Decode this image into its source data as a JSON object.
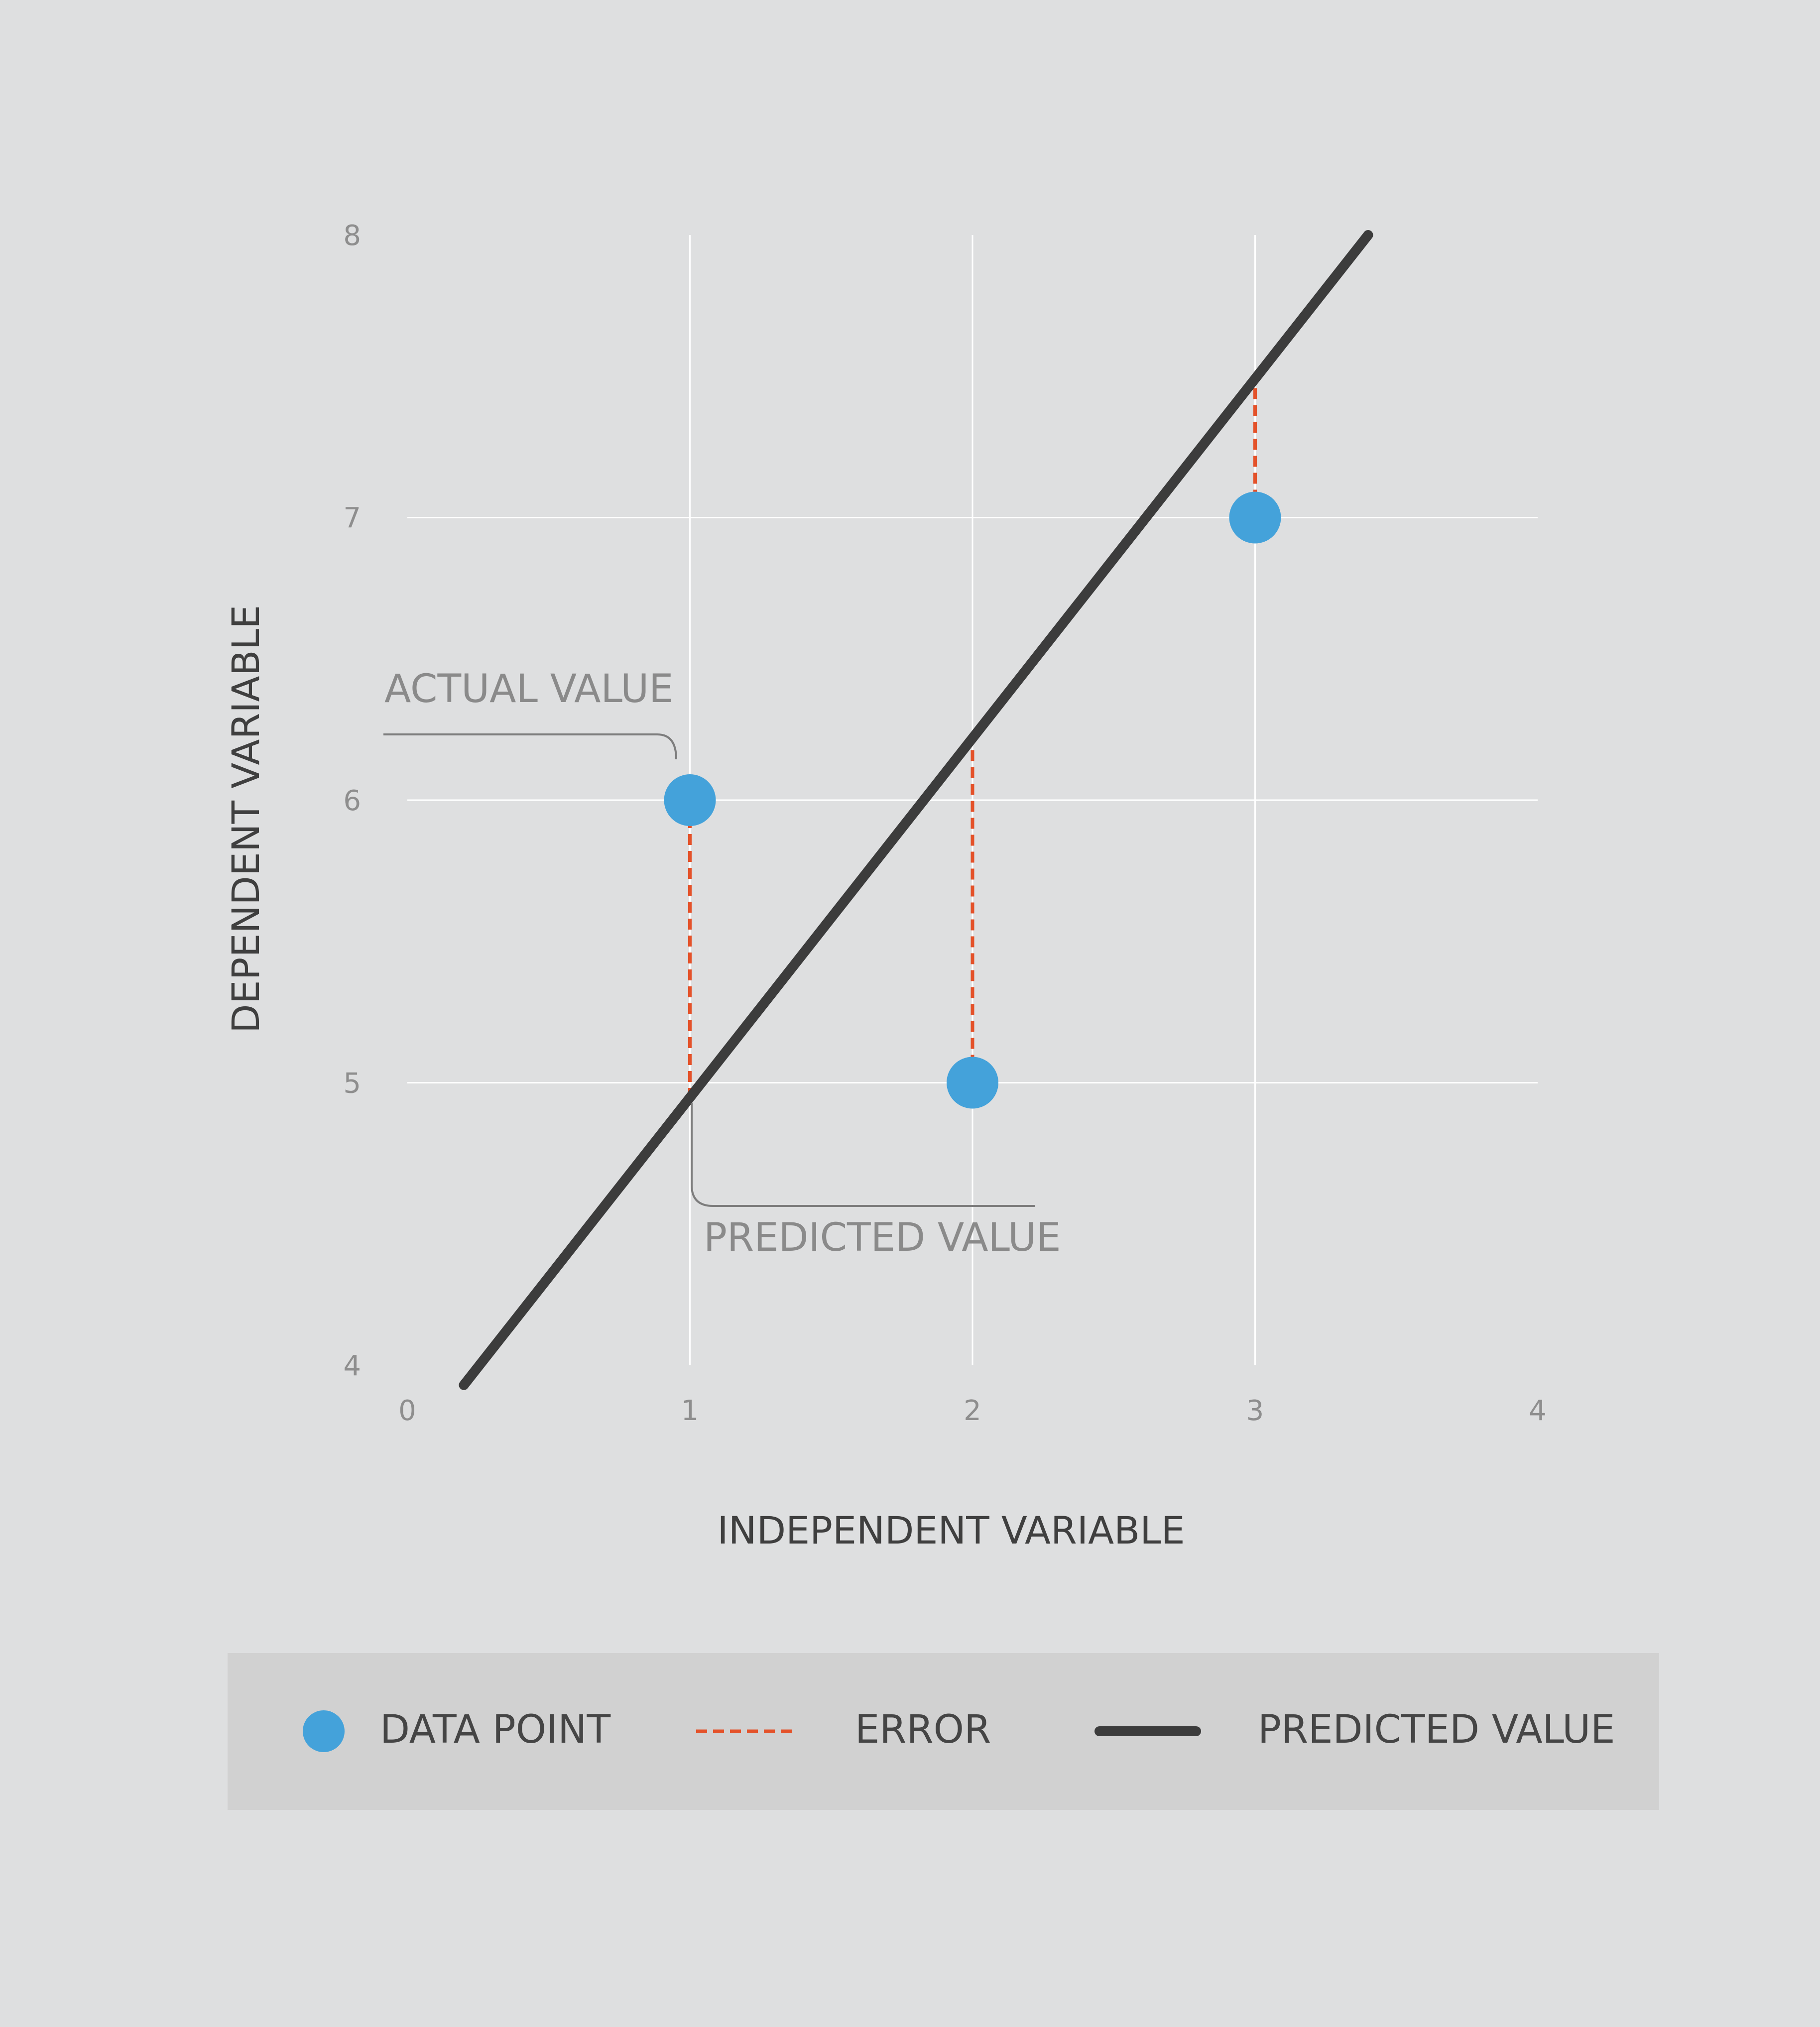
{
  "chart_data": {
    "type": "scatter",
    "xlabel": "INDEPENDENT VARIABLE",
    "ylabel": "DEPENDENT VARIABLE",
    "xlim": [
      0,
      4
    ],
    "ylim": [
      4,
      8
    ],
    "x_ticks": [
      "0",
      "1",
      "2",
      "3",
      "4"
    ],
    "y_ticks": [
      "4",
      "5",
      "6",
      "7",
      "8"
    ],
    "grid": true,
    "points": [
      {
        "x": 1,
        "y": 6
      },
      {
        "x": 2,
        "y": 5
      },
      {
        "x": 3,
        "y": 7
      }
    ],
    "regression_line": {
      "x_start": 0.2,
      "y_start": 3.93,
      "x_end": 3.4,
      "y_end": 8
    },
    "annotations": {
      "actual_value": "ACTUAL VALUE",
      "predicted_value": "PREDICTED VALUE"
    },
    "legend": {
      "placement": "bottom",
      "items": [
        {
          "label": "DATA POINT",
          "symbol": "circle",
          "color": "#44a2da"
        },
        {
          "label": "ERROR",
          "symbol": "dashed-line",
          "color": "#e4522a"
        },
        {
          "label": "PREDICTED VALUE",
          "symbol": "solid-line",
          "color": "#3c3c3c"
        }
      ]
    },
    "colors": {
      "background": "#dedfe0",
      "grid": "#ffffff",
      "point": "#44a2da",
      "error": "#e4522a",
      "line": "#3c3c3c",
      "legend_bg": "#d1d1d1"
    }
  }
}
